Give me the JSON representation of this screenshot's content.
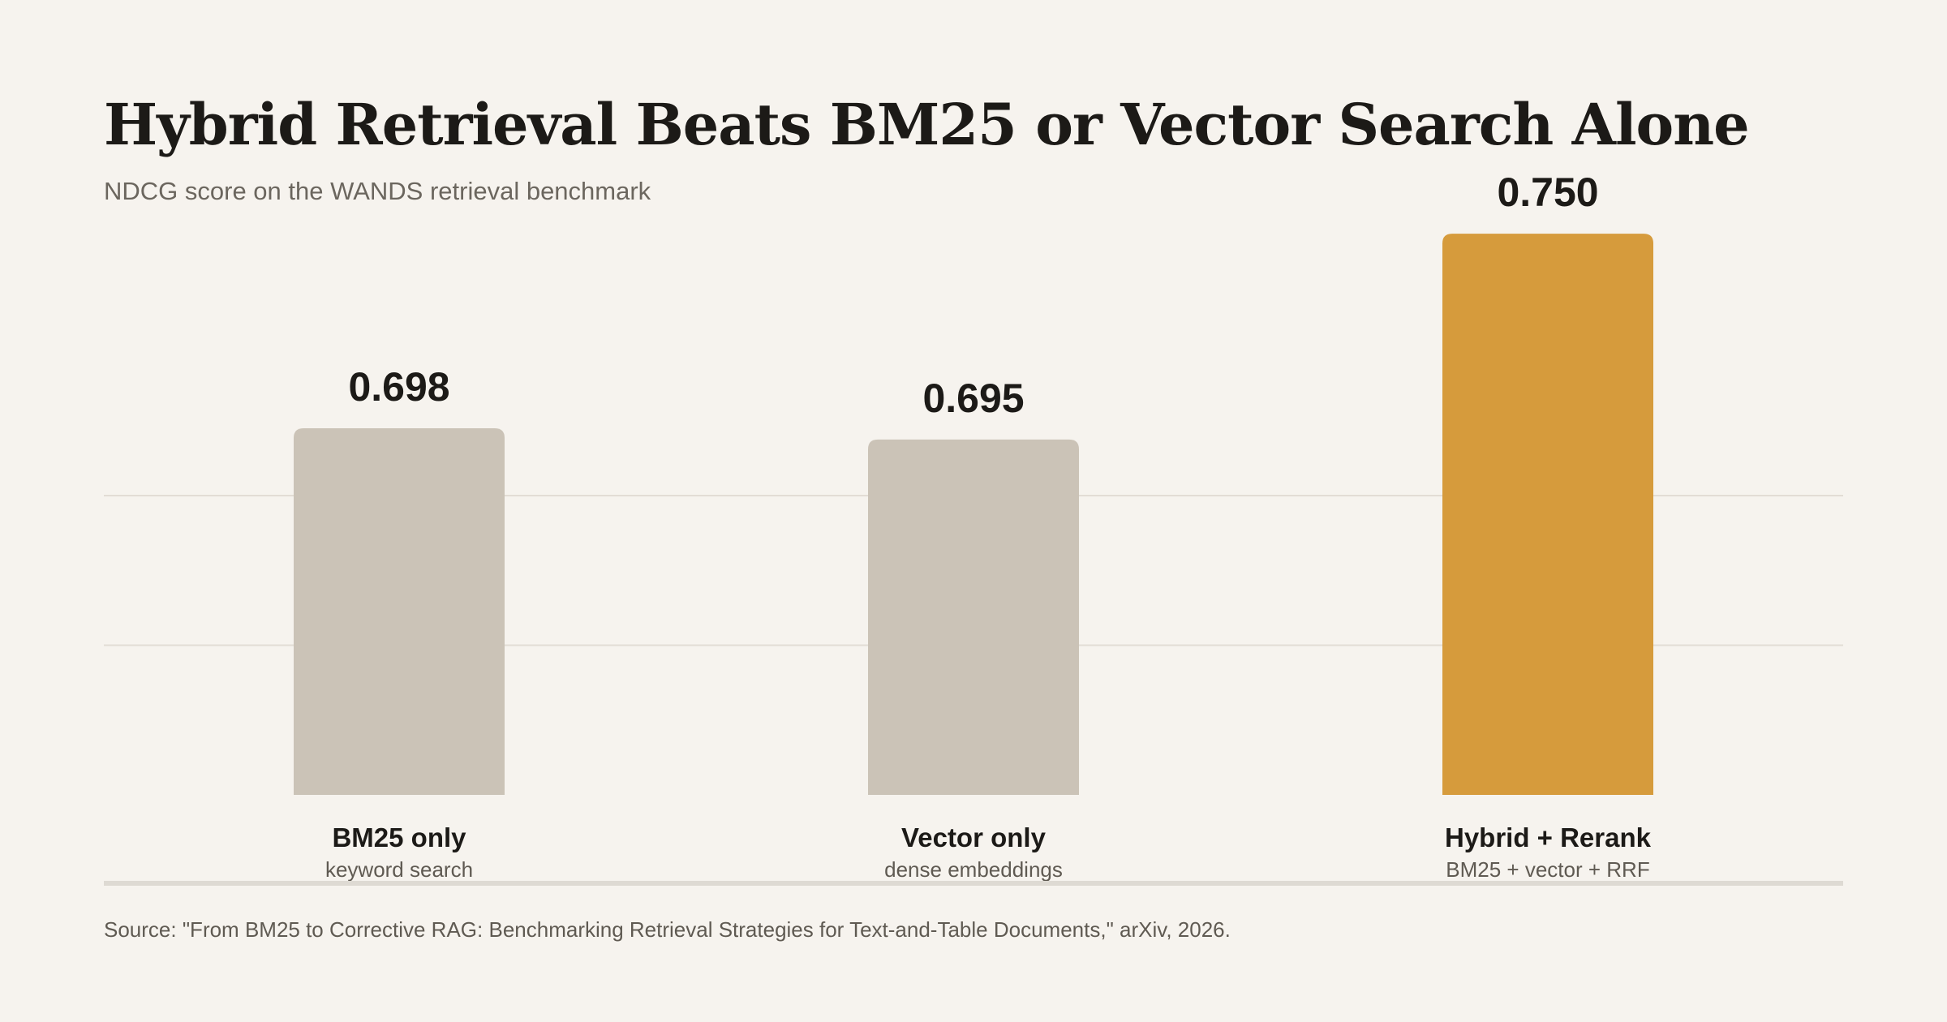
{
  "chart_data": {
    "type": "bar",
    "title": "Hybrid Retrieval Beats BM25 or Vector Search Alone",
    "subtitle": "NDCG score on the WANDS retrieval benchmark",
    "categories": [
      "BM25 only",
      "Vector only",
      "Hybrid + Rerank"
    ],
    "category_sublabels": [
      "keyword search",
      "dense embeddings",
      "BM25 + vector + RRF"
    ],
    "values": [
      0.698,
      0.695,
      0.75
    ],
    "value_labels": [
      "0.698",
      "0.695",
      "0.750"
    ],
    "ylim": [
      0.6,
      0.76
    ],
    "gridlines": [
      0.64,
      0.68
    ],
    "grid": true,
    "xlabel": "",
    "ylabel": "",
    "colors": {
      "baseline_bar": "#cbc3b7",
      "highlight_bar": "#d69b3c",
      "gridline": "#e2ddd5",
      "axis": "#dedad3",
      "background": "#f6f3ee"
    },
    "highlight_index": 2,
    "source": "Source: \"From BM25 to Corrective RAG: Benchmarking Retrieval Strategies for Text-and-Table Documents,\" arXiv, 2026."
  }
}
